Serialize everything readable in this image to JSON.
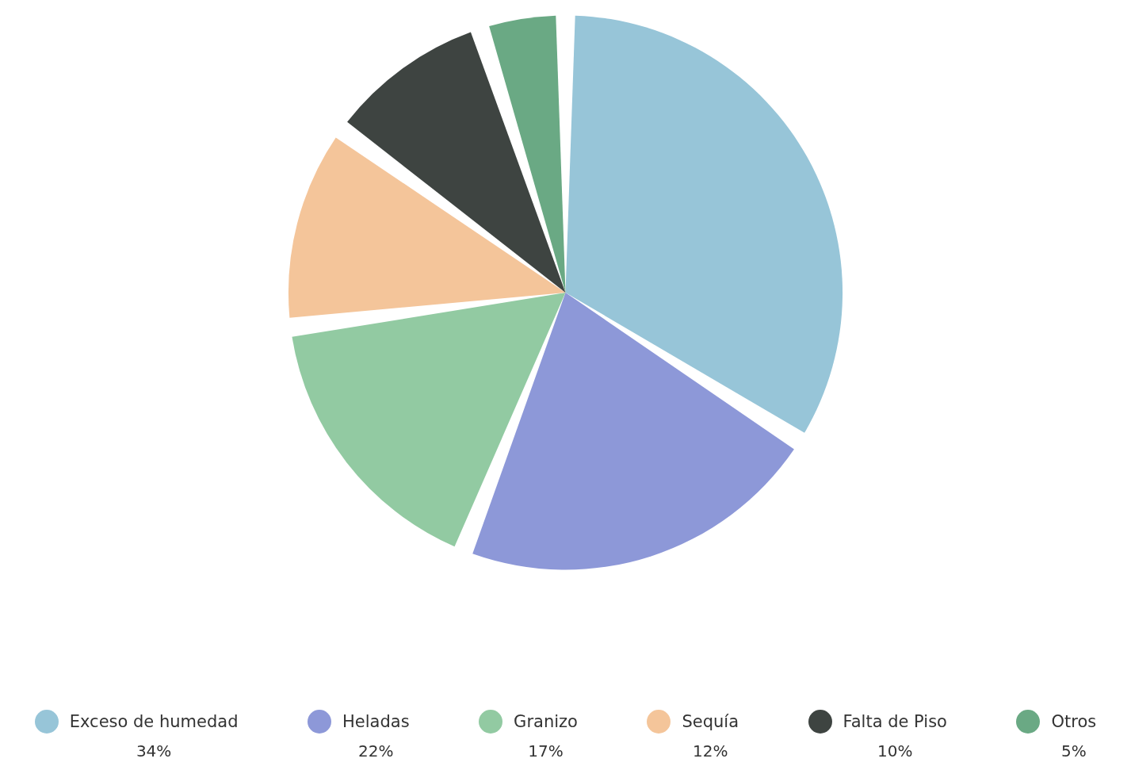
{
  "chart_data": {
    "type": "pie",
    "categories": [
      "Exceso de humedad",
      "Heladas",
      "Granizo",
      "Sequía",
      "Falta de Piso",
      "Otros"
    ],
    "values": [
      34,
      22,
      17,
      12,
      10,
      5
    ],
    "value_labels": [
      "34%",
      "22%",
      "17%",
      "12%",
      "10%",
      "5%"
    ],
    "colors": [
      "#97c5d8",
      "#8d98d8",
      "#92caa2",
      "#f4c59a",
      "#3e4441",
      "#6aa984"
    ],
    "legend": "bottom"
  }
}
